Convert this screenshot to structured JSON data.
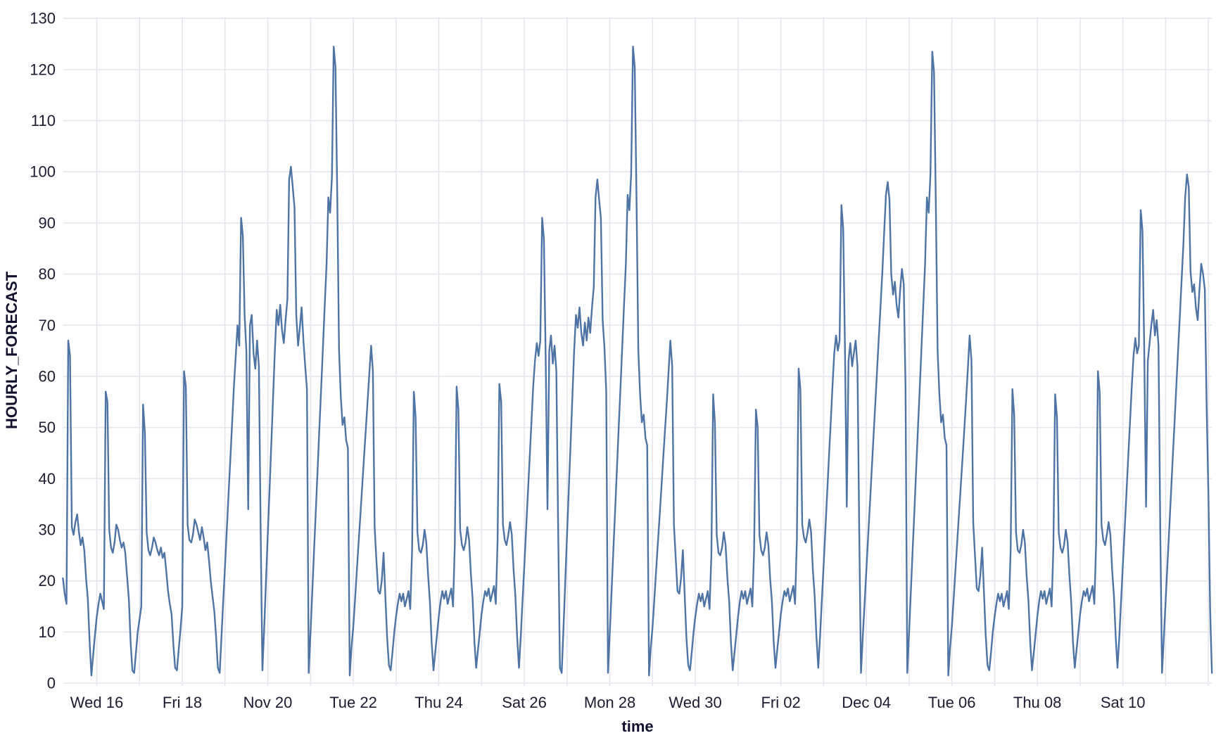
{
  "chart_data": {
    "type": "line",
    "title": "",
    "xlabel": "time",
    "ylabel": "HOURLY_FORECAST",
    "series_name": "HOURLY_FORECAST",
    "legend_position": "none",
    "grid": "on",
    "background_color": "#ffffff",
    "line_color": "#4d74a5",
    "gridline_color": "#e6e6ee",
    "tick_color": "#1c1c30",
    "ylim": [
      0,
      130
    ],
    "ytick_step": 10,
    "y_ticks": [
      0,
      10,
      20,
      30,
      40,
      50,
      60,
      70,
      80,
      90,
      100,
      110,
      120,
      130
    ],
    "x_axis": {
      "start": "Nov 15, 05:00",
      "end": "Dec 12, 02:00",
      "interval_hours": 1,
      "day_gridlines": true,
      "first_point_hour_offset": 5
    },
    "x_ticks": [
      {
        "hour": 24,
        "label": "Wed 16"
      },
      {
        "hour": 72,
        "label": "Fri 18"
      },
      {
        "hour": 120,
        "label": "Nov 20"
      },
      {
        "hour": 168,
        "label": "Tue 22"
      },
      {
        "hour": 216,
        "label": "Thu 24"
      },
      {
        "hour": 264,
        "label": "Sat 26"
      },
      {
        "hour": 312,
        "label": "Mon 28"
      },
      {
        "hour": 360,
        "label": "Wed 30"
      },
      {
        "hour": 408,
        "label": "Fri 02"
      },
      {
        "hour": 456,
        "label": "Dec 04"
      },
      {
        "hour": 504,
        "label": "Tue 06"
      },
      {
        "hour": 552,
        "label": "Thu 08"
      },
      {
        "hour": 600,
        "label": "Sat 10"
      }
    ],
    "days": [
      {
        "date": "Nov 15",
        "start_hour": 5,
        "values": [
          20.5,
          17.5,
          15.5,
          67,
          64,
          30.5,
          29,
          31.5,
          33,
          29.5,
          27,
          28.5,
          26,
          20.5,
          16.5,
          8,
          1.5,
          5.5,
          9.5
        ]
      },
      {
        "date": "Nov 16",
        "start_hour": 0,
        "values": [
          13,
          15.5,
          17.5,
          16,
          14.5,
          57,
          55,
          30,
          26.5,
          25.5,
          27.5,
          31,
          30,
          28,
          26.5,
          27.5,
          25.5,
          21,
          16.5,
          8,
          2.5,
          2,
          6,
          10
        ]
      },
      {
        "date": "Nov 17",
        "start_hour": 0,
        "values": [
          12.5,
          15,
          54.5,
          49,
          29.5,
          26,
          25,
          26.5,
          28.5,
          27.5,
          26,
          25,
          26.5,
          24.5,
          25.5,
          22,
          18,
          15.5,
          13.5,
          7.5,
          3,
          2.5,
          6.5,
          10.5
        ]
      },
      {
        "date": "Nov 18",
        "start_hour": 0,
        "values": [
          15,
          61,
          58,
          31,
          28,
          27.5,
          29,
          32,
          31,
          29.5,
          28,
          30.5,
          28.5,
          26,
          27.5,
          24,
          20,
          17,
          14,
          9,
          3,
          2,
          9,
          16
        ]
      },
      {
        "date": "Nov 19",
        "start_hour": 0,
        "values": [
          23,
          30,
          37,
          44,
          51,
          58,
          64,
          70,
          66,
          91,
          87.5,
          72,
          65,
          34,
          70,
          72,
          64.5,
          61.5,
          67,
          62,
          30,
          2.5,
          11,
          20
        ]
      },
      {
        "date": "Nov 20",
        "start_hour": 0,
        "values": [
          29,
          38,
          47,
          56,
          65,
          73,
          70,
          74,
          69,
          66.5,
          71,
          75,
          98.5,
          101,
          97,
          93,
          72,
          66,
          69.5,
          73.5,
          67,
          62,
          57.5,
          2
        ]
      },
      {
        "date": "Nov 21",
        "start_hour": 0,
        "values": [
          10,
          18,
          26,
          34,
          42,
          50,
          58,
          66,
          74,
          82,
          95,
          92,
          99,
          124.5,
          120.5,
          95,
          65,
          56,
          50.5,
          52,
          47.5,
          46,
          1.5,
          7
        ]
      },
      {
        "date": "Nov 22",
        "start_hour": 0,
        "values": [
          11,
          16.5,
          22,
          27.5,
          33,
          38.5,
          44,
          49.5,
          55,
          60.5,
          66,
          61,
          30.5,
          24,
          18,
          17.5,
          20,
          25.5,
          17,
          9,
          3.5,
          2.5,
          6,
          10
        ]
      },
      {
        "date": "Nov 23",
        "start_hour": 0,
        "values": [
          13,
          15.5,
          17.5,
          16,
          17.5,
          15,
          16.5,
          18,
          14.5,
          26,
          57,
          52,
          29.5,
          26,
          25.5,
          27,
          30,
          27.5,
          21,
          16,
          8,
          2.5,
          6,
          9.5
        ]
      },
      {
        "date": "Nov 24",
        "start_hour": 0,
        "values": [
          13,
          16,
          18,
          16.5,
          18,
          15.5,
          17,
          18.5,
          15,
          27,
          58,
          53.5,
          30,
          27,
          26,
          27.5,
          30.5,
          28,
          21.5,
          16.5,
          8,
          3,
          6.5,
          10
        ]
      },
      {
        "date": "Nov 25",
        "start_hour": 0,
        "values": [
          13.5,
          16,
          18,
          17,
          18.5,
          16,
          17.5,
          19,
          15.5,
          28,
          58.5,
          55,
          31,
          28,
          27,
          29,
          31.5,
          29,
          22,
          17,
          9,
          3,
          9,
          16
        ]
      },
      {
        "date": "Nov 26",
        "start_hour": 0,
        "values": [
          23,
          30,
          37,
          44,
          51,
          58,
          63,
          66.5,
          64,
          67,
          91,
          87,
          64,
          34,
          65,
          68,
          62.5,
          66,
          61,
          30,
          3,
          2,
          11,
          20
        ]
      },
      {
        "date": "Nov 27",
        "start_hour": 0,
        "values": [
          29,
          38,
          47,
          56,
          65,
          72,
          69.5,
          73.5,
          68.5,
          66,
          70.5,
          67,
          71.5,
          68.5,
          73.5,
          77.5,
          95,
          98.5,
          94.5,
          91,
          71,
          65.5,
          57,
          2
        ]
      },
      {
        "date": "Nov 28",
        "start_hour": 0,
        "values": [
          10,
          18,
          26,
          34,
          42,
          50,
          58,
          66,
          74,
          82,
          95.5,
          92.5,
          99.5,
          124.5,
          120.5,
          95,
          65,
          56.5,
          51,
          52.5,
          48,
          46.5,
          1.5,
          7
        ]
      },
      {
        "date": "Nov 29",
        "start_hour": 0,
        "values": [
          11,
          16.5,
          22,
          27.5,
          33,
          38.5,
          44,
          49.5,
          55,
          61,
          67,
          62,
          31,
          24.5,
          18,
          17.5,
          20.5,
          26,
          17.5,
          9,
          3.5,
          2.5,
          6,
          10
        ]
      },
      {
        "date": "Nov 30",
        "start_hour": 0,
        "values": [
          13,
          15.5,
          17.5,
          16,
          17.5,
          15,
          16.5,
          18,
          14.5,
          25,
          56.5,
          51,
          29,
          25.5,
          25,
          26.5,
          29.5,
          27,
          20.5,
          16,
          8,
          2.5,
          6,
          9.5
        ]
      },
      {
        "date": "Dec 01",
        "start_hour": 0,
        "values": [
          13,
          16,
          18,
          16.5,
          18,
          15.5,
          17,
          18.5,
          15,
          26,
          53.5,
          50,
          29,
          26,
          25,
          26.5,
          29.5,
          27,
          20.5,
          16,
          8,
          3,
          6.5,
          10
        ]
      },
      {
        "date": "Dec 02",
        "start_hour": 0,
        "values": [
          13.5,
          16,
          18,
          17,
          18.5,
          16,
          17.5,
          19,
          15.5,
          28,
          61.5,
          57.5,
          31,
          28.5,
          27.5,
          29.5,
          32,
          29.5,
          22,
          17,
          9,
          3,
          9,
          16
        ]
      },
      {
        "date": "Dec 03",
        "start_hour": 0,
        "values": [
          23,
          30,
          37,
          44,
          51,
          58,
          64.5,
          68,
          65,
          67,
          93.5,
          89,
          66,
          34.5,
          63,
          66.5,
          62,
          64.5,
          67,
          62,
          30,
          2,
          9,
          15.5
        ]
      },
      {
        "date": "Dec 04",
        "start_hour": 0,
        "values": [
          22,
          28.5,
          35,
          41.5,
          48,
          54.5,
          61,
          67.5,
          74,
          80.5,
          88,
          95.5,
          98,
          94.5,
          80,
          76,
          78.5,
          74,
          71.5,
          77,
          81,
          78,
          58,
          2
        ]
      },
      {
        "date": "Dec 05",
        "start_hour": 0,
        "values": [
          10,
          18,
          26,
          34,
          42,
          50,
          58,
          66,
          74,
          82,
          95,
          92,
          99.5,
          123.5,
          119.5,
          94.5,
          65,
          56.5,
          51,
          52.5,
          48,
          46.5,
          1.5,
          7
        ]
      },
      {
        "date": "Dec 06",
        "start_hour": 0,
        "values": [
          11,
          16.5,
          22,
          27.5,
          33,
          38.5,
          44,
          49.5,
          55.5,
          61.5,
          68,
          63,
          31.5,
          25,
          18.5,
          18,
          21,
          26.5,
          18,
          9.5,
          3.5,
          2.5,
          6,
          10
        ]
      },
      {
        "date": "Dec 07",
        "start_hour": 0,
        "values": [
          13,
          15.5,
          17.5,
          16,
          17.5,
          15,
          16.5,
          18,
          14.5,
          26,
          57.5,
          52.5,
          29.5,
          26,
          25.5,
          27,
          30,
          27.5,
          21,
          16,
          8,
          2.5,
          6,
          9.5
        ]
      },
      {
        "date": "Dec 08",
        "start_hour": 0,
        "values": [
          13,
          16,
          18,
          16.5,
          18,
          15.5,
          17,
          18.5,
          15,
          26.5,
          56.5,
          52,
          29.5,
          26.5,
          25.5,
          27,
          30,
          27.5,
          21,
          16,
          8,
          3,
          6.5,
          10
        ]
      },
      {
        "date": "Dec 09",
        "start_hour": 0,
        "values": [
          13.5,
          16,
          18,
          17,
          18.5,
          16,
          17.5,
          19,
          15.5,
          27.5,
          61,
          57,
          31,
          28,
          27,
          29,
          31.5,
          29,
          22,
          17,
          9,
          3,
          9,
          16
        ]
      },
      {
        "date": "Dec 10",
        "start_hour": 0,
        "values": [
          23,
          30,
          37,
          44,
          51,
          58,
          64,
          67.5,
          64.5,
          66,
          92.5,
          88.5,
          65.5,
          34.5,
          63,
          66.5,
          70,
          73,
          68,
          71,
          66,
          30,
          2,
          9
        ]
      },
      {
        "date": "Dec 11",
        "start_hour": 0,
        "values": [
          16,
          23,
          30,
          37,
          44,
          51,
          58,
          65,
          72,
          79,
          86,
          95,
          99.5,
          97,
          80.5,
          76.5,
          78,
          73.5,
          71,
          77,
          82,
          80,
          77,
          55
        ]
      },
      {
        "date": "Dec 12",
        "start_hour": 0,
        "values": [
          37,
          14,
          2
        ]
      }
    ]
  }
}
